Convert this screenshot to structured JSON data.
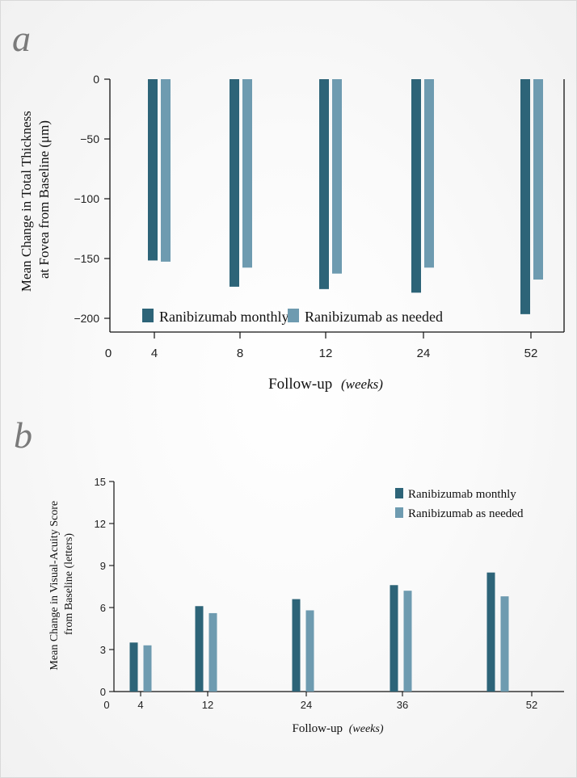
{
  "colors": {
    "monthly": "#2d6478",
    "as_needed": "#6e9bb0",
    "axis": "#111111",
    "panel_letter": "#7a7a7a"
  },
  "chart_data": [
    {
      "panel": "a",
      "type": "bar",
      "ylabel_line1": "Mean Change in Total Thickness",
      "ylabel_line2": "at Fovea from Baseline (μm)",
      "xlabel_main": "Follow-up",
      "xlabel_unit": "(weeks)",
      "ylim": [
        -212,
        0
      ],
      "yticks": [
        0,
        -50,
        -100,
        -150,
        -200
      ],
      "ytick_labels": [
        "0",
        "−50",
        "−100",
        "−150",
        "−200"
      ],
      "x_zero_label": "0",
      "categories": [
        "4",
        "8",
        "12",
        "24",
        "52"
      ],
      "series": [
        {
          "name": "Ranibizumab monthly",
          "values": [
            -152,
            -174,
            -176,
            -179,
            -197
          ]
        },
        {
          "name": "Ranibizumab as needed",
          "values": [
            -153,
            -158,
            -163,
            -158,
            -168
          ]
        }
      ],
      "legend": "bottom-inside"
    },
    {
      "panel": "b",
      "type": "bar",
      "ylabel_line1": "Mean Change in Visual-Acuity Score",
      "ylabel_line2": "from Baseline (letters)",
      "xlabel_main": "Follow-up",
      "xlabel_unit": "(weeks)",
      "ylim": [
        0,
        15
      ],
      "yticks": [
        0,
        3,
        6,
        9,
        12,
        15
      ],
      "ytick_labels": [
        "0",
        "3",
        "6",
        "9",
        "12",
        "15"
      ],
      "x_zero_label": "0",
      "xtick_labels": [
        "4",
        "12",
        "24",
        "36",
        "52"
      ],
      "series": [
        {
          "name": "Ranibizumab monthly",
          "values": [
            3.5,
            6.1,
            6.6,
            7.6,
            8.5
          ]
        },
        {
          "name": "Ranibizumab as needed",
          "values": [
            3.3,
            5.6,
            5.8,
            7.2,
            6.8
          ]
        }
      ],
      "legend": "top-right"
    }
  ]
}
